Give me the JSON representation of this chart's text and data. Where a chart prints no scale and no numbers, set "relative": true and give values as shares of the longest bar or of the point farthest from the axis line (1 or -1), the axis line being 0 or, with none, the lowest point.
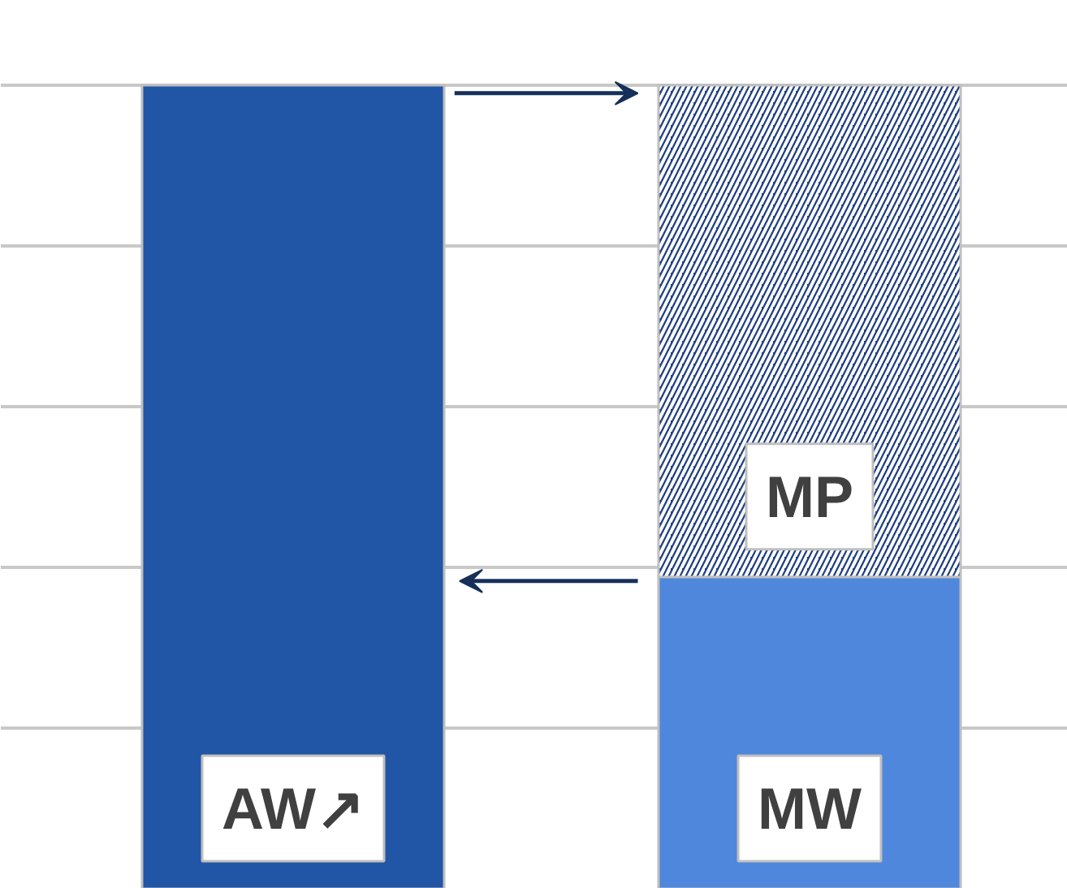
{
  "chart_data": {
    "type": "bar",
    "relative": true,
    "stacked": true,
    "grid": "y",
    "tick_labels": false,
    "categories": [
      null,
      null
    ],
    "series": [
      {
        "name": "AW↗",
        "color": "#2155a5",
        "values": [
          1,
          null
        ]
      },
      {
        "name": "MW",
        "color": "#4f87dd",
        "values": [
          null,
          0.388
        ]
      },
      {
        "name": "MP",
        "color": "#1f3f80",
        "values": [
          null,
          0.612
        ]
      }
    ]
  }
}
